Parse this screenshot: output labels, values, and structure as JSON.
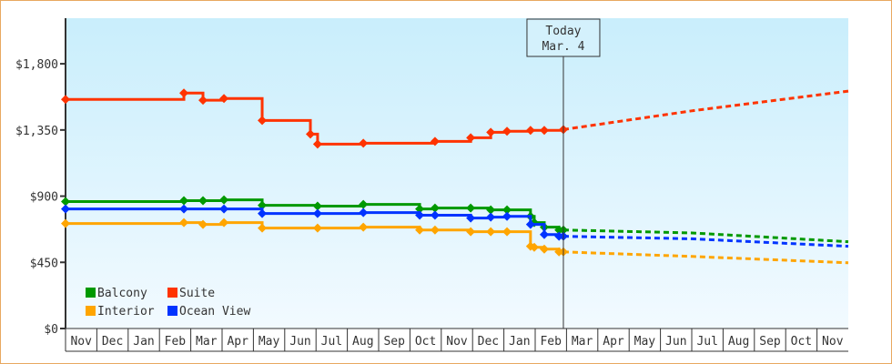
{
  "chart_data": {
    "type": "line",
    "title": "",
    "xlabel": "",
    "ylabel": "",
    "ylim": [
      0,
      2110
    ],
    "xlim_months": [
      0,
      25
    ],
    "yticks": [
      {
        "v": 0,
        "label": "$0"
      },
      {
        "v": 450,
        "label": "$450"
      },
      {
        "v": 900,
        "label": "$900"
      },
      {
        "v": 1350,
        "label": "$1,350"
      },
      {
        "v": 1800,
        "label": "$1,800"
      }
    ],
    "months": [
      "Nov",
      "Dec",
      "Jan",
      "Feb",
      "Mar",
      "Apr",
      "May",
      "Jun",
      "Jul",
      "Aug",
      "Sep",
      "Oct",
      "Nov",
      "Dec",
      "Jan",
      "Feb",
      "Mar",
      "Apr",
      "May",
      "Jun",
      "Jul",
      "Aug",
      "Sep",
      "Oct",
      "Nov"
    ],
    "today": {
      "x": 15.9,
      "line1": "Today",
      "line2": "Mar. 4"
    },
    "legend_position": "bottom-left",
    "series": [
      {
        "name": "Balcony",
        "color": "#009900",
        "points": [
          [
            0,
            863
          ],
          [
            3.78,
            869
          ],
          [
            4.39,
            869
          ],
          [
            5.06,
            875
          ],
          [
            6.28,
            838
          ],
          [
            8.05,
            832
          ],
          [
            9.51,
            844
          ],
          [
            11.31,
            813
          ],
          [
            11.8,
            819
          ],
          [
            12.94,
            819
          ],
          [
            13.58,
            807
          ],
          [
            14.1,
            807
          ],
          [
            14.85,
            763
          ],
          [
            14.97,
            720
          ],
          [
            15.29,
            689
          ],
          [
            15.76,
            670
          ],
          [
            15.9,
            670
          ]
        ],
        "projection": [
          [
            15.9,
            670
          ],
          [
            20,
            650
          ],
          [
            25,
            590
          ]
        ]
      },
      {
        "name": "Suite",
        "color": "#ff3300",
        "points": [
          [
            0,
            1558
          ],
          [
            3.78,
            1601
          ],
          [
            4.39,
            1552
          ],
          [
            5.06,
            1564
          ],
          [
            6.28,
            1415
          ],
          [
            7.82,
            1322
          ],
          [
            8.05,
            1254
          ],
          [
            9.51,
            1260
          ],
          [
            11.8,
            1272
          ],
          [
            12.94,
            1297
          ],
          [
            13.58,
            1334
          ],
          [
            14.1,
            1341
          ],
          [
            14.85,
            1347
          ],
          [
            15.29,
            1347
          ],
          [
            15.9,
            1353
          ]
        ],
        "projection": [
          [
            15.9,
            1353
          ],
          [
            20,
            1480
          ],
          [
            25,
            1614
          ]
        ]
      },
      {
        "name": "Interior",
        "color": "#ffa500",
        "points": [
          [
            0,
            714
          ],
          [
            3.78,
            720
          ],
          [
            4.39,
            708
          ],
          [
            5.06,
            720
          ],
          [
            6.28,
            683
          ],
          [
            8.05,
            683
          ],
          [
            9.51,
            689
          ],
          [
            11.31,
            670
          ],
          [
            11.8,
            670
          ],
          [
            12.94,
            658
          ],
          [
            13.58,
            658
          ],
          [
            14.1,
            658
          ],
          [
            14.85,
            559
          ],
          [
            14.97,
            552
          ],
          [
            15.29,
            540
          ],
          [
            15.76,
            521
          ],
          [
            15.9,
            521
          ]
        ],
        "projection": [
          [
            15.9,
            521
          ],
          [
            20,
            490
          ],
          [
            25,
            447
          ]
        ]
      },
      {
        "name": "Ocean View",
        "color": "#0033ff",
        "points": [
          [
            0,
            813
          ],
          [
            3.78,
            813
          ],
          [
            5.06,
            813
          ],
          [
            6.28,
            782
          ],
          [
            8.05,
            782
          ],
          [
            9.51,
            788
          ],
          [
            11.31,
            770
          ],
          [
            11.8,
            770
          ],
          [
            12.94,
            751
          ],
          [
            13.58,
            757
          ],
          [
            14.1,
            763
          ],
          [
            14.85,
            708
          ],
          [
            15.29,
            639
          ],
          [
            15.76,
            627
          ],
          [
            15.9,
            627
          ]
        ],
        "projection": [
          [
            15.9,
            627
          ],
          [
            20,
            610
          ],
          [
            25,
            559
          ]
        ]
      }
    ]
  }
}
